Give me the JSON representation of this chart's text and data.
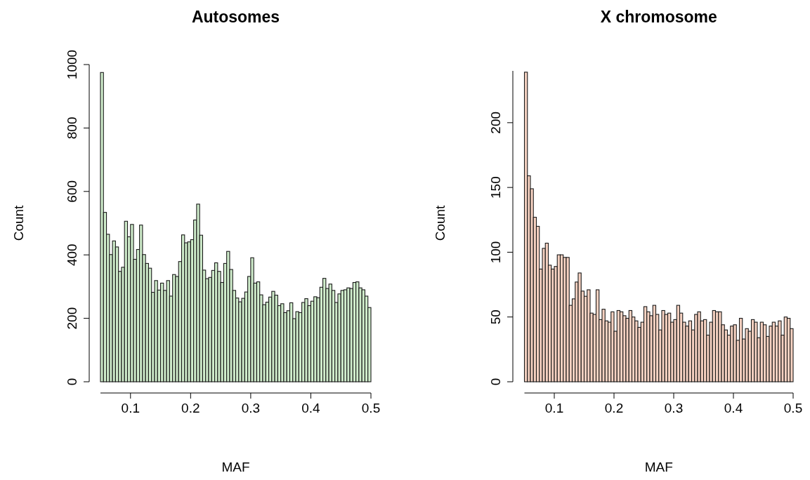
{
  "chart_data": [
    {
      "type": "histogram",
      "title": "Autosomes",
      "xlabel": "MAF",
      "ylabel": "Count",
      "color": "#cfeccb",
      "bins": [
        0.05,
        0.055,
        0.06,
        0.065,
        0.07,
        0.075,
        0.08,
        0.085,
        0.09,
        0.095,
        0.1,
        0.105,
        0.11,
        0.115,
        0.12,
        0.125,
        0.13,
        0.135,
        0.14,
        0.145,
        0.15,
        0.155,
        0.16,
        0.165,
        0.17,
        0.175,
        0.18,
        0.185,
        0.19,
        0.195,
        0.2,
        0.205,
        0.21,
        0.215,
        0.22,
        0.225,
        0.23,
        0.235,
        0.24,
        0.245,
        0.25,
        0.255,
        0.26,
        0.265,
        0.27,
        0.275,
        0.28,
        0.285,
        0.29,
        0.295,
        0.3,
        0.305,
        0.31,
        0.315,
        0.32,
        0.325,
        0.33,
        0.335,
        0.34,
        0.345,
        0.35,
        0.355,
        0.36,
        0.365,
        0.37,
        0.375,
        0.38,
        0.385,
        0.39,
        0.395,
        0.4,
        0.405,
        0.41,
        0.415,
        0.42,
        0.425,
        0.43,
        0.435,
        0.44,
        0.445,
        0.45,
        0.455,
        0.46,
        0.465,
        0.47,
        0.475,
        0.48,
        0.485,
        0.49,
        0.495,
        0.5
      ],
      "values": [
        975,
        534,
        465,
        401,
        444,
        425,
        348,
        361,
        506,
        457,
        496,
        386,
        417,
        494,
        401,
        373,
        358,
        282,
        319,
        289,
        311,
        288,
        319,
        270,
        338,
        332,
        379,
        463,
        438,
        441,
        448,
        510,
        560,
        462,
        352,
        325,
        329,
        351,
        375,
        348,
        313,
        373,
        411,
        354,
        288,
        264,
        252,
        263,
        283,
        332,
        391,
        311,
        315,
        274,
        243,
        251,
        267,
        285,
        273,
        240,
        246,
        218,
        224,
        249,
        199,
        221,
        218,
        250,
        262,
        240,
        254,
        268,
        265,
        298,
        326,
        294,
        308,
        288,
        250,
        277,
        288,
        290,
        296,
        294,
        313,
        315,
        296,
        290,
        270,
        234
      ],
      "xlim": [
        0.05,
        0.5
      ],
      "xticks": [
        0.1,
        0.2,
        0.3,
        0.4,
        0.5
      ],
      "ylim": [
        0,
        1000
      ],
      "yticks": [
        0,
        200,
        400,
        600,
        800,
        1000
      ]
    },
    {
      "type": "histogram",
      "title": "X chromosome",
      "xlabel": "MAF",
      "ylabel": "Count",
      "color": "#f6d2c2",
      "bins": [
        0.05,
        0.055,
        0.06,
        0.065,
        0.07,
        0.075,
        0.08,
        0.085,
        0.09,
        0.095,
        0.1,
        0.105,
        0.11,
        0.115,
        0.12,
        0.125,
        0.13,
        0.135,
        0.14,
        0.145,
        0.15,
        0.155,
        0.16,
        0.165,
        0.17,
        0.175,
        0.18,
        0.185,
        0.19,
        0.195,
        0.2,
        0.205,
        0.21,
        0.215,
        0.22,
        0.225,
        0.23,
        0.235,
        0.24,
        0.245,
        0.25,
        0.255,
        0.26,
        0.265,
        0.27,
        0.275,
        0.28,
        0.285,
        0.29,
        0.295,
        0.3,
        0.305,
        0.31,
        0.315,
        0.32,
        0.325,
        0.33,
        0.335,
        0.34,
        0.345,
        0.35,
        0.355,
        0.36,
        0.365,
        0.37,
        0.375,
        0.38,
        0.385,
        0.39,
        0.395,
        0.4,
        0.405,
        0.41,
        0.415,
        0.42,
        0.425,
        0.43,
        0.435,
        0.44,
        0.445,
        0.45,
        0.455,
        0.46,
        0.465,
        0.47,
        0.475,
        0.48,
        0.485,
        0.49,
        0.495,
        0.5
      ],
      "values": [
        239,
        159,
        149,
        127,
        120,
        87,
        103,
        107,
        90,
        87,
        89,
        98,
        98,
        96,
        96,
        59,
        64,
        77,
        84,
        70,
        66,
        71,
        53,
        52,
        71,
        48,
        56,
        47,
        46,
        54,
        39,
        55,
        54,
        51,
        49,
        55,
        50,
        47,
        42,
        46,
        58,
        54,
        51,
        59,
        52,
        40,
        55,
        52,
        53,
        46,
        48,
        59,
        53,
        46,
        43,
        47,
        40,
        52,
        54,
        47,
        48,
        36,
        46,
        55,
        54,
        54,
        44,
        40,
        36,
        43,
        44,
        32,
        49,
        33,
        41,
        39,
        48,
        46,
        34,
        46,
        44,
        35,
        43,
        46,
        43,
        47,
        36,
        50,
        49,
        41
      ],
      "xlim": [
        0.05,
        0.5
      ],
      "xticks": [
        0.1,
        0.2,
        0.3,
        0.4,
        0.5
      ],
      "ylim": [
        0,
        240
      ],
      "yticks": [
        0,
        50,
        100,
        150,
        200
      ]
    }
  ]
}
